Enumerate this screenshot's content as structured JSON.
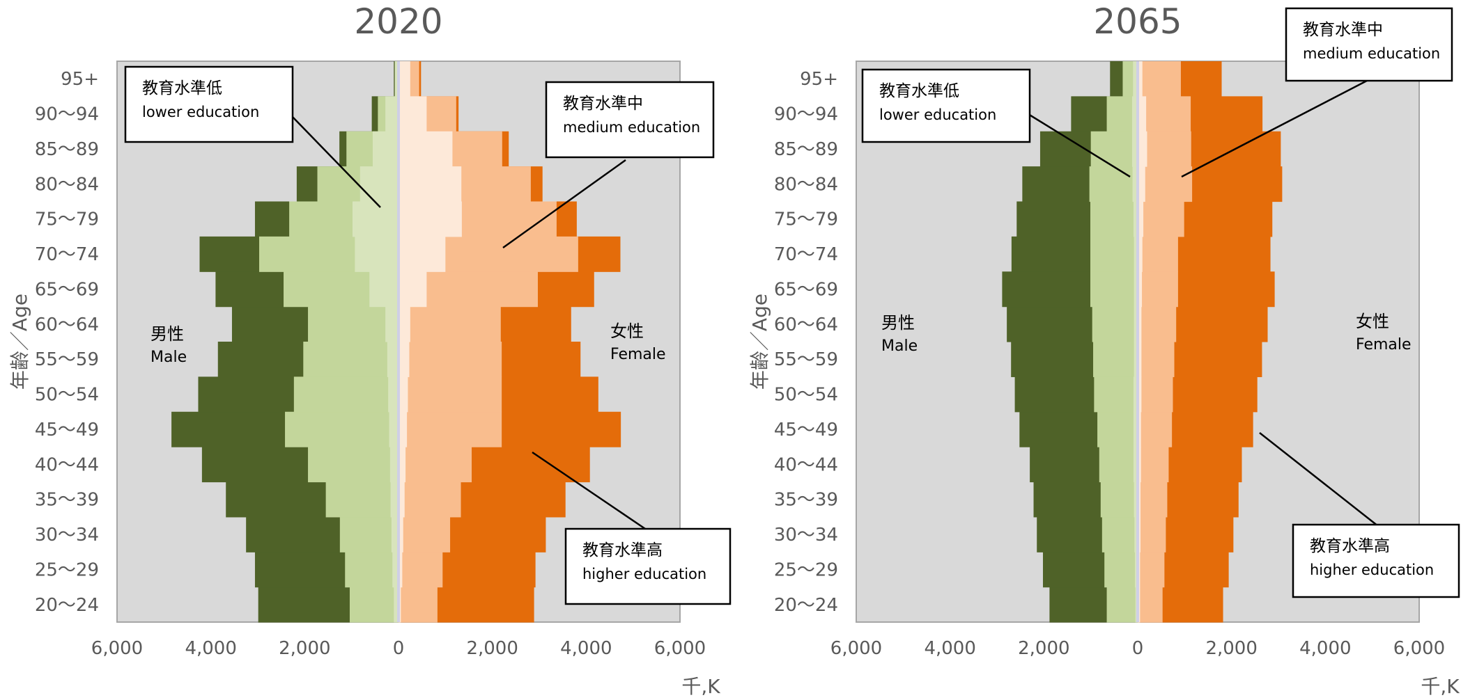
{
  "chart_data": [
    {
      "type": "bar",
      "subtype": "population-pyramid-stacked",
      "title": "2020",
      "ylabel": "年齢／Age",
      "unit_label": "千,K",
      "xlim": [
        -6000,
        6000
      ],
      "x_ticks": [
        "6,000",
        "4,000",
        "2,000",
        "0",
        "2,000",
        "4,000",
        "6,000"
      ],
      "grid": false,
      "categories": [
        "20〜24",
        "25〜29",
        "30〜34",
        "35〜39",
        "40〜44",
        "45〜49",
        "50〜54",
        "55〜59",
        "60〜64",
        "65〜69",
        "70〜74",
        "75〜79",
        "80〜84",
        "85〜89",
        "90〜94",
        "95+"
      ],
      "sides": {
        "male": {
          "line1": "男性",
          "line2": "Male"
        },
        "female": {
          "line1": "女性",
          "line2": "Female"
        }
      },
      "series": [
        {
          "side": "male",
          "level": "lower",
          "values": [
            100,
            130,
            150,
            170,
            180,
            200,
            220,
            240,
            280,
            620,
            930,
            980,
            820,
            550,
            280,
            80
          ]
        },
        {
          "side": "male",
          "level": "medium",
          "values": [
            1040,
            1140,
            1250,
            1550,
            1930,
            2420,
            2230,
            2030,
            1930,
            2450,
            2970,
            2330,
            1730,
            1110,
            440,
            50
          ]
        },
        {
          "side": "male",
          "level": "higher",
          "values": [
            2990,
            3060,
            3250,
            3680,
            4190,
            4840,
            4270,
            3850,
            3550,
            3900,
            4240,
            3060,
            2170,
            1260,
            570,
            100
          ]
        },
        {
          "side": "female",
          "level": "lower",
          "values": [
            50,
            80,
            100,
            130,
            150,
            180,
            200,
            230,
            250,
            600,
            1000,
            1350,
            1340,
            1150,
            600,
            250
          ]
        },
        {
          "side": "female",
          "level": "medium",
          "values": [
            830,
            940,
            1100,
            1330,
            1560,
            2200,
            2200,
            2200,
            2180,
            2970,
            3830,
            3370,
            2820,
            2210,
            1230,
            440
          ]
        },
        {
          "side": "female",
          "level": "higher",
          "values": [
            2890,
            2920,
            3140,
            3560,
            4080,
            4740,
            4260,
            3880,
            3680,
            4170,
            4730,
            3800,
            3070,
            2350,
            1280,
            480
          ]
        }
      ],
      "annotations": [
        {
          "id": "lower",
          "line1": "教育水準低",
          "line2": "lower education"
        },
        {
          "id": "medium",
          "line1": "教育水準中",
          "line2": "medium education"
        },
        {
          "id": "higher",
          "line1": "教育水準高",
          "line2": "higher education"
        }
      ]
    },
    {
      "type": "bar",
      "subtype": "population-pyramid-stacked",
      "title": "2065",
      "ylabel": "年齢／Age",
      "unit_label": "千,K",
      "xlim": [
        -6000,
        6000
      ],
      "x_ticks": [
        "6,000",
        "4,000",
        "2,000",
        "0",
        "2,000",
        "4,000",
        "6,000"
      ],
      "grid": false,
      "categories": [
        "20〜24",
        "25〜29",
        "30〜34",
        "35〜39",
        "40〜44",
        "45〜49",
        "50〜54",
        "55〜59",
        "60〜64",
        "65〜69",
        "70〜74",
        "75〜79",
        "80〜84",
        "85〜89",
        "90〜94",
        "95+"
      ],
      "sides": {
        "male": {
          "line1": "男性",
          "line2": "Male"
        },
        "female": {
          "line1": "女性",
          "line2": "Female"
        }
      },
      "series": [
        {
          "side": "male",
          "level": "lower",
          "values": [
            50,
            60,
            70,
            80,
            90,
            90,
            90,
            80,
            80,
            80,
            80,
            90,
            110,
            120,
            120,
            100
          ]
        },
        {
          "side": "male",
          "level": "medium",
          "values": [
            660,
            710,
            760,
            790,
            820,
            860,
            930,
            950,
            970,
            1010,
            1010,
            1010,
            1030,
            1000,
            660,
            320
          ]
        },
        {
          "side": "male",
          "level": "higher",
          "values": [
            1880,
            2020,
            2150,
            2220,
            2300,
            2520,
            2620,
            2700,
            2790,
            2890,
            2690,
            2580,
            2460,
            2080,
            1420,
            590
          ]
        },
        {
          "side": "female",
          "level": "lower",
          "values": [
            50,
            50,
            60,
            60,
            70,
            70,
            80,
            80,
            80,
            90,
            100,
            120,
            160,
            200,
            180,
            100
          ]
        },
        {
          "side": "female",
          "level": "medium",
          "values": [
            530,
            570,
            600,
            630,
            660,
            730,
            750,
            780,
            820,
            860,
            860,
            990,
            1160,
            1140,
            1130,
            920
          ]
        },
        {
          "side": "female",
          "level": "higher",
          "values": [
            1820,
            1940,
            2040,
            2150,
            2220,
            2460,
            2550,
            2650,
            2770,
            2920,
            2830,
            2870,
            3080,
            3050,
            2660,
            1790
          ]
        }
      ],
      "annotations": [
        {
          "id": "lower",
          "line1": "教育水準低",
          "line2": "lower education"
        },
        {
          "id": "medium",
          "line1": "教育水準中",
          "line2": "medium education"
        },
        {
          "id": "higher",
          "line1": "教育水準高",
          "line2": "higher education"
        }
      ]
    }
  ],
  "colors": {
    "plot_bg": "#d9d9d9",
    "plot_border": "#a6a6a6",
    "male_higher": "#4f6228",
    "male_medium": "#c3d69b",
    "male_lower": "#d8e4bc",
    "female_lower": "#fde9d9",
    "female_medium": "#f9bd8e",
    "female_higher": "#e46c0a",
    "center_line": "#cfcfe6",
    "text": "#595959"
  }
}
